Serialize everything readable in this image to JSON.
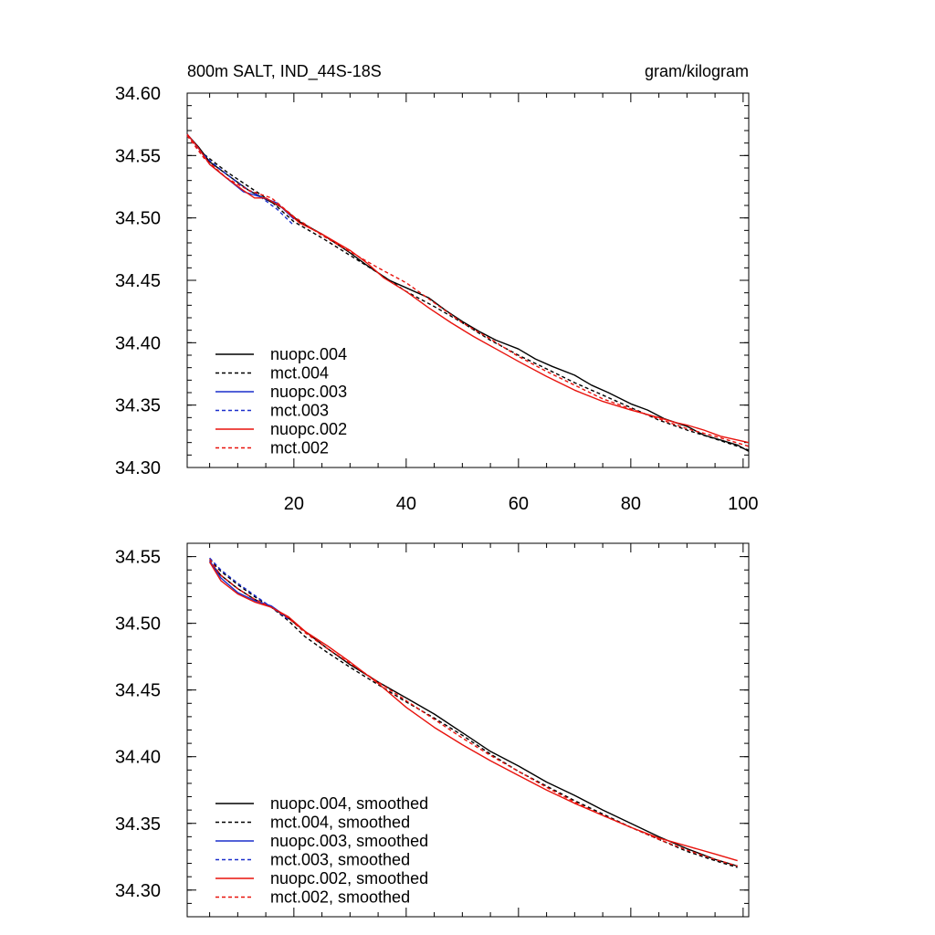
{
  "chart_data": [
    {
      "type": "line",
      "title_left": "800m SALT, IND_44S-18S",
      "title_right": "gram/kilogram",
      "xlim": [
        1,
        101
      ],
      "ylim": [
        34.3,
        34.6
      ],
      "yticks": [
        34.3,
        34.35,
        34.4,
        34.45,
        34.5,
        34.55,
        34.6
      ],
      "ytick_labels": [
        "34.30",
        "34.35",
        "34.40",
        "34.45",
        "34.50",
        "34.55",
        "34.60"
      ],
      "xticks": [
        20,
        40,
        60,
        80,
        100
      ],
      "xtick_labels": [
        "20",
        "40",
        "60",
        "80",
        "100"
      ],
      "series": [
        {
          "name": "nuopc.004",
          "color": "#000000",
          "dash": false,
          "x": [
            1,
            3,
            5,
            8,
            12,
            15,
            18,
            21,
            25,
            30,
            33,
            37,
            40,
            44,
            47,
            50,
            53,
            56,
            60,
            63,
            66,
            70,
            73,
            76,
            80,
            83,
            86,
            88,
            90,
            93,
            96,
            99,
            101
          ],
          "y": [
            34.567,
            34.557,
            34.545,
            34.535,
            34.522,
            34.515,
            34.508,
            34.497,
            34.487,
            34.472,
            34.462,
            34.45,
            34.444,
            34.436,
            34.426,
            34.417,
            34.409,
            34.402,
            34.395,
            34.387,
            34.381,
            34.374,
            34.366,
            34.36,
            34.351,
            34.346,
            34.339,
            34.336,
            34.333,
            34.326,
            34.322,
            34.318,
            34.313
          ]
        },
        {
          "name": "mct.004",
          "color": "#000000",
          "dash": true,
          "x": [
            1,
            4,
            8,
            12,
            16,
            20,
            25,
            30,
            35,
            40,
            45,
            50,
            55,
            60,
            65,
            70,
            75,
            80,
            85,
            90,
            95,
            101
          ],
          "y": [
            34.566,
            34.551,
            34.537,
            34.525,
            34.513,
            34.497,
            34.484,
            34.47,
            34.456,
            34.441,
            34.429,
            34.416,
            34.402,
            34.39,
            34.379,
            34.368,
            34.358,
            34.348,
            34.338,
            34.33,
            34.323,
            34.314
          ]
        },
        {
          "name": "nuopc.003",
          "color": "#1a2ecc",
          "dash": false,
          "x": [
            1,
            3,
            5,
            8,
            11,
            14,
            17,
            20
          ],
          "y": [
            34.567,
            34.556,
            34.543,
            34.532,
            34.521,
            34.517,
            34.512,
            34.499
          ]
        },
        {
          "name": "mct.003",
          "color": "#1a2ecc",
          "dash": true,
          "x": [
            1,
            3,
            5,
            8,
            11,
            14,
            17,
            20
          ],
          "y": [
            34.566,
            34.555,
            34.546,
            34.535,
            34.525,
            34.517,
            34.507,
            34.494
          ]
        },
        {
          "name": "nuopc.002",
          "color": "#e8120c",
          "dash": false,
          "x": [
            1,
            3,
            5,
            8,
            11,
            13,
            15,
            18,
            21,
            25,
            30,
            33,
            36,
            40,
            44,
            48,
            52,
            56,
            60,
            65,
            70,
            75,
            80,
            85,
            88,
            90,
            93,
            96,
            99,
            101
          ],
          "y": [
            34.567,
            34.556,
            34.543,
            34.532,
            34.522,
            34.516,
            34.516,
            34.508,
            34.496,
            34.487,
            34.474,
            34.464,
            34.452,
            34.441,
            34.428,
            34.416,
            34.405,
            34.395,
            34.385,
            34.373,
            34.362,
            34.353,
            34.346,
            34.34,
            34.336,
            34.334,
            34.33,
            34.325,
            34.322,
            34.32
          ]
        },
        {
          "name": "mct.002",
          "color": "#e8120c",
          "dash": true,
          "x": [
            1,
            4,
            8,
            12,
            16,
            20,
            25,
            30,
            35,
            40,
            45,
            50,
            55,
            60,
            65,
            70,
            75,
            80,
            85,
            90,
            95,
            101
          ],
          "y": [
            34.566,
            34.548,
            34.532,
            34.522,
            34.516,
            34.501,
            34.486,
            34.473,
            34.46,
            34.448,
            34.432,
            34.416,
            34.403,
            34.389,
            34.377,
            34.366,
            34.355,
            34.347,
            34.339,
            34.331,
            34.325,
            34.317
          ]
        }
      ]
    },
    {
      "type": "line",
      "xlim": [
        1,
        101
      ],
      "ylim": [
        34.28,
        34.56
      ],
      "yticks": [
        34.3,
        34.35,
        34.4,
        34.45,
        34.5,
        34.55
      ],
      "ytick_labels": [
        "34.30",
        "34.35",
        "34.40",
        "34.45",
        "34.50",
        "34.55"
      ],
      "xticks": [
        20,
        40,
        60,
        80,
        100
      ],
      "xtick_labels": [],
      "series": [
        {
          "name": "nuopc.004, smoothed",
          "color": "#000000",
          "dash": false,
          "x": [
            5,
            7,
            10,
            13,
            16,
            19,
            22,
            26,
            30,
            35,
            40,
            45,
            50,
            55,
            60,
            65,
            70,
            75,
            80,
            85,
            90,
            95,
            99
          ],
          "y": [
            34.546,
            34.536,
            34.526,
            34.518,
            34.512,
            34.504,
            34.494,
            34.481,
            34.469,
            34.456,
            34.444,
            34.432,
            34.418,
            34.404,
            34.393,
            34.381,
            34.371,
            34.36,
            34.35,
            34.34,
            34.331,
            34.323,
            34.318
          ]
        },
        {
          "name": "mct.004, smoothed",
          "color": "#000000",
          "dash": true,
          "x": [
            5,
            7,
            10,
            13,
            16,
            19,
            22,
            26,
            30,
            35,
            40,
            45,
            50,
            55,
            60,
            65,
            70,
            75,
            80,
            85,
            90,
            95,
            99
          ],
          "y": [
            34.548,
            34.539,
            34.529,
            34.52,
            34.512,
            34.502,
            34.49,
            34.478,
            34.467,
            34.454,
            34.441,
            34.429,
            34.416,
            34.402,
            34.389,
            34.378,
            34.367,
            34.357,
            34.347,
            34.338,
            34.329,
            34.322,
            34.317
          ]
        },
        {
          "name": "nuopc.003, smoothed",
          "color": "#1a2ecc",
          "dash": false,
          "x": [
            5,
            7,
            10,
            13,
            16,
            19
          ],
          "y": [
            34.547,
            34.534,
            34.523,
            34.517,
            34.513,
            34.504
          ]
        },
        {
          "name": "mct.003, smoothed",
          "color": "#1a2ecc",
          "dash": true,
          "x": [
            5,
            7,
            10,
            13,
            16,
            19
          ],
          "y": [
            34.549,
            34.54,
            34.53,
            34.521,
            34.512,
            34.503
          ]
        },
        {
          "name": "nuopc.002, smoothed",
          "color": "#e8120c",
          "dash": false,
          "x": [
            5,
            7,
            10,
            13,
            16,
            19,
            22,
            26,
            30,
            35,
            40,
            45,
            50,
            55,
            60,
            65,
            70,
            75,
            80,
            85,
            90,
            95,
            99
          ],
          "y": [
            34.546,
            34.532,
            34.522,
            34.516,
            34.512,
            34.505,
            34.494,
            34.483,
            34.471,
            34.455,
            34.437,
            34.422,
            34.409,
            34.397,
            34.386,
            34.375,
            34.365,
            34.356,
            34.347,
            34.339,
            34.333,
            34.327,
            34.322
          ]
        },
        {
          "name": "mct.002, smoothed",
          "color": "#e8120c",
          "dash": true,
          "x": [
            5,
            7,
            10,
            13,
            16,
            19,
            22,
            26,
            30,
            35,
            40,
            45,
            50,
            55,
            60,
            65,
            70,
            75,
            80,
            85,
            90,
            95,
            99
          ],
          "y": [
            34.548,
            34.536,
            34.526,
            34.518,
            34.512,
            34.504,
            34.493,
            34.481,
            34.47,
            34.456,
            34.442,
            34.428,
            34.414,
            34.401,
            34.389,
            34.377,
            34.366,
            34.356,
            34.347,
            34.338,
            34.33,
            34.323,
            34.318
          ]
        }
      ]
    }
  ]
}
